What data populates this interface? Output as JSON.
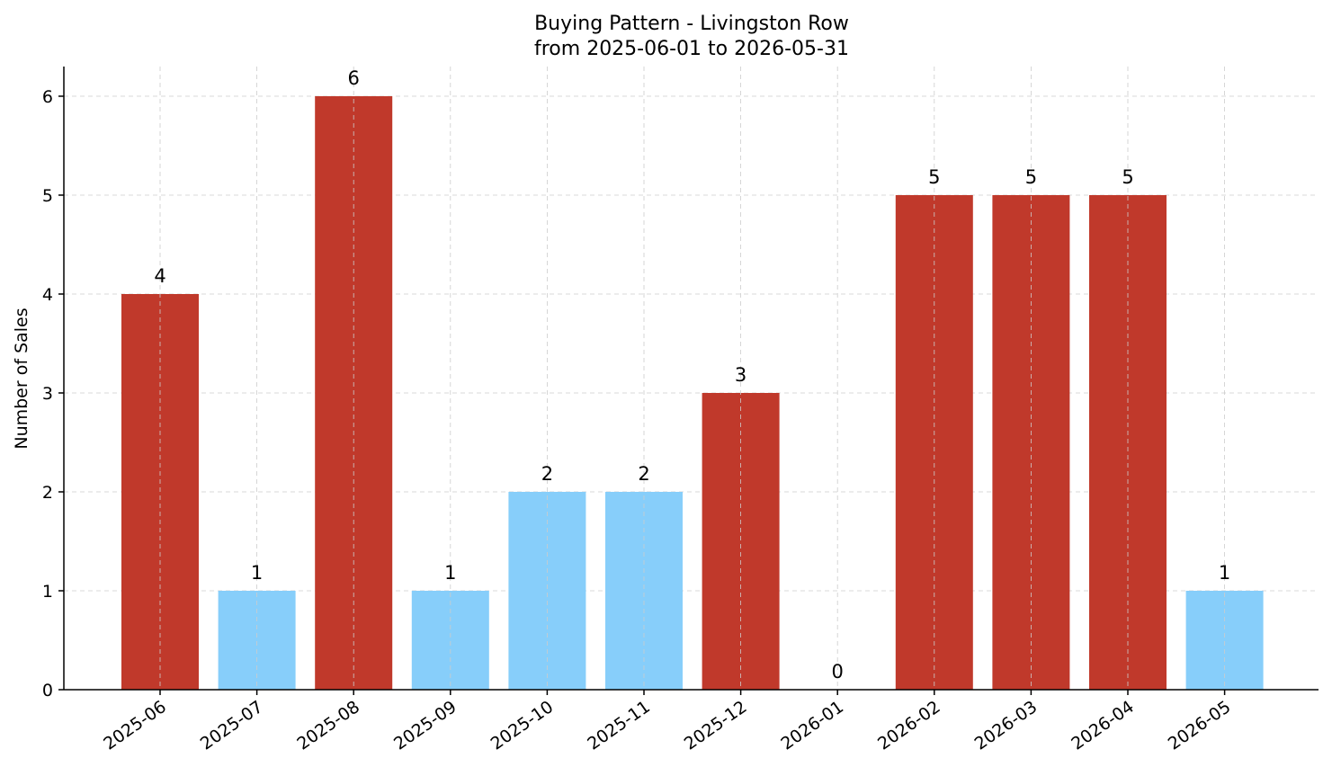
{
  "chart_data": {
    "type": "bar",
    "title": "Buying Pattern - Livingston Row",
    "subtitle": "from 2025-06-01 to 2026-05-31",
    "xlabel": "",
    "ylabel": "Number of Sales",
    "categories": [
      "2025-06",
      "2025-07",
      "2025-08",
      "2025-09",
      "2025-10",
      "2025-11",
      "2025-12",
      "2026-01",
      "2026-02",
      "2026-03",
      "2026-04",
      "2026-05"
    ],
    "values": [
      4,
      1,
      6,
      1,
      2,
      2,
      3,
      0,
      5,
      5,
      5,
      1
    ],
    "bar_colors": [
      "#c0392b",
      "#87cefa",
      "#c0392b",
      "#87cefa",
      "#87cefa",
      "#87cefa",
      "#c0392b",
      "#87cefa",
      "#c0392b",
      "#c0392b",
      "#c0392b",
      "#87cefa"
    ],
    "yticks": [
      0,
      1,
      2,
      3,
      4,
      5,
      6
    ],
    "ylim": [
      0,
      6.3
    ],
    "grid": true,
    "legend": "none"
  }
}
